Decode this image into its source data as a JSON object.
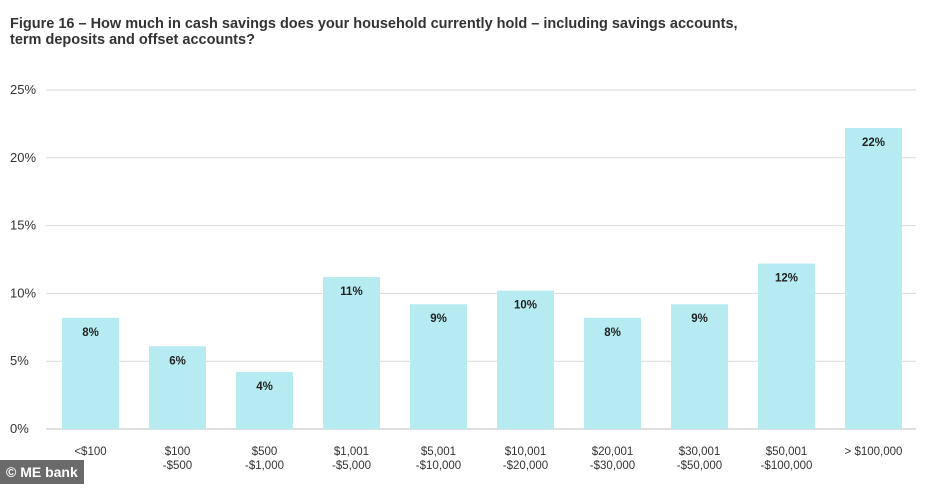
{
  "chart_data": {
    "type": "bar",
    "title": "Figure 16 – How much in cash savings does your household currently hold – including savings accounts,\nterm deposits and offset accounts?",
    "categories": [
      [
        "<$100"
      ],
      [
        "$100",
        "-$500"
      ],
      [
        "$500",
        "-$1,000"
      ],
      [
        "$1,001",
        "-$5,000"
      ],
      [
        "$5,001",
        "-$10,000"
      ],
      [
        "$10,001",
        "-$20,000"
      ],
      [
        "$20,001",
        "-$30,000"
      ],
      [
        "$30,001",
        "-$50,000"
      ],
      [
        "$50,001",
        "-$100,000"
      ],
      [
        "> $100,000"
      ]
    ],
    "values": [
      8,
      6,
      4,
      11,
      9,
      10,
      8,
      9,
      12,
      22
    ],
    "plotted_values": [
      8.2,
      6.1,
      4.2,
      11.2,
      9.2,
      10.2,
      8.2,
      9.2,
      12.2,
      22.2
    ],
    "data_labels": [
      "8%",
      "6%",
      "4%",
      "11%",
      "9%",
      "10%",
      "8%",
      "9%",
      "12%",
      "22%"
    ],
    "yticks": [
      "0%",
      "5%",
      "10%",
      "15%",
      "20%",
      "25%"
    ],
    "ytick_values": [
      0,
      5,
      10,
      15,
      20,
      25
    ],
    "ylim": [
      0,
      25
    ],
    "xlabel": "",
    "ylabel": "",
    "grid": true,
    "bar_color": "#b6ecf1",
    "grid_color": "#d9d9d9"
  },
  "watermark": "© ME bank"
}
